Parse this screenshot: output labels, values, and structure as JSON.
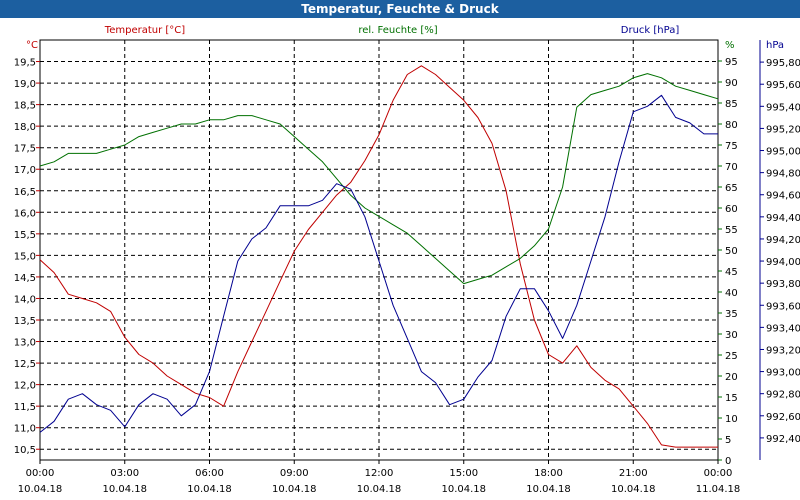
{
  "title": "Temperatur, Feuchte & Druck",
  "colors": {
    "titlebar": "#1c5fa0",
    "temperature": "#c00000",
    "humidity": "#007000",
    "pressure": "#000090",
    "grid": "#000000"
  },
  "chart_data": {
    "type": "line",
    "title": "Temperatur, Feuchte & Druck",
    "grid": true,
    "x_ticks": [
      {
        "time": "00:00",
        "date": "10.04.18"
      },
      {
        "time": "03:00",
        "date": "10.04.18"
      },
      {
        "time": "06:00",
        "date": "10.04.18"
      },
      {
        "time": "09:00",
        "date": "10.04.18"
      },
      {
        "time": "12:00",
        "date": "10.04.18"
      },
      {
        "time": "15:00",
        "date": "10.04.18"
      },
      {
        "time": "18:00",
        "date": "10.04.18"
      },
      {
        "time": "21:00",
        "date": "10.04.18"
      },
      {
        "time": "00:00",
        "date": "11.04.18"
      }
    ],
    "axes": {
      "temperature": {
        "unit": "°C",
        "ylim": [
          10.25,
          20.0
        ],
        "ticks": [
          "19,5",
          "19,0",
          "18,5",
          "18,0",
          "17,5",
          "17,0",
          "16,5",
          "16,0",
          "15,5",
          "15,0",
          "14,5",
          "14,0",
          "13,5",
          "13,0",
          "12,5",
          "12,0",
          "11,5",
          "11,0",
          "10,5"
        ]
      },
      "humidity": {
        "unit": "%",
        "ylim": [
          0,
          100
        ],
        "ticks": [
          "95",
          "90",
          "85",
          "80",
          "75",
          "70",
          "65",
          "60",
          "55",
          "50",
          "45",
          "40",
          "35",
          "30",
          "25",
          "20",
          "15",
          "10",
          "5",
          "0"
        ]
      },
      "pressure": {
        "unit": "hPa",
        "ylim": [
          992.2,
          996.0
        ],
        "ticks": [
          "995,80",
          "995,60",
          "995,40",
          "995,20",
          "995,00",
          "994,80",
          "994,60",
          "994,40",
          "994,20",
          "994,00",
          "993,80",
          "993,60",
          "993,40",
          "993,20",
          "993,00",
          "992,80",
          "992,60",
          "992,40"
        ]
      }
    },
    "series": [
      {
        "name": "Temperatur [°C]",
        "color": "#c00000",
        "axis": "temperature",
        "x": [
          0,
          0.5,
          1,
          1.5,
          2,
          2.5,
          3,
          3.5,
          4,
          4.5,
          5,
          5.5,
          6,
          6.5,
          7,
          7.5,
          8,
          8.5,
          9,
          9.5,
          10,
          10.5,
          11,
          11.5,
          12,
          12.5,
          13,
          13.5,
          14,
          14.5,
          15,
          15.5,
          16,
          16.5,
          17,
          17.5,
          18,
          18.5,
          19,
          19.5,
          20,
          20.5,
          21,
          21.5,
          22,
          22.5,
          23,
          23.5,
          24
        ],
        "values": [
          14.9,
          14.6,
          14.1,
          14.0,
          13.9,
          13.7,
          13.1,
          12.7,
          12.5,
          12.2,
          12.0,
          11.8,
          11.7,
          11.5,
          12.3,
          13.0,
          13.7,
          14.4,
          15.1,
          15.6,
          16.0,
          16.4,
          16.7,
          17.2,
          17.8,
          18.6,
          19.2,
          19.4,
          19.2,
          18.9,
          18.6,
          18.2,
          17.6,
          16.5,
          14.8,
          13.5,
          12.7,
          12.5,
          12.9,
          12.4,
          12.1,
          11.9,
          11.5,
          11.1,
          10.6,
          10.55,
          10.55,
          10.55,
          10.55
        ]
      },
      {
        "name": "rel. Feuchte [%]",
        "color": "#007000",
        "axis": "humidity",
        "x": [
          0,
          0.5,
          1,
          1.5,
          2,
          2.5,
          3,
          3.5,
          4,
          4.5,
          5,
          5.5,
          6,
          6.5,
          7,
          7.5,
          8,
          8.5,
          9,
          9.5,
          10,
          10.5,
          11,
          11.5,
          12,
          12.5,
          13,
          13.5,
          14,
          14.5,
          15,
          15.5,
          16,
          16.5,
          17,
          17.5,
          18,
          18.5,
          19,
          19.5,
          20,
          20.5,
          21,
          21.5,
          22,
          22.5,
          23,
          23.5,
          24
        ],
        "values": [
          70,
          71,
          73,
          73,
          73,
          74,
          75,
          77,
          78,
          79,
          80,
          80,
          81,
          81,
          82,
          82,
          81,
          80,
          77,
          74,
          71,
          67,
          63,
          60,
          58,
          56,
          54,
          51,
          48,
          45,
          42,
          43,
          44,
          46,
          48,
          51,
          55,
          65,
          84,
          87,
          88,
          89,
          91,
          92,
          91,
          89,
          88,
          87,
          86
        ]
      },
      {
        "name": "Druck [hPa]",
        "color": "#000090",
        "axis": "pressure",
        "x": [
          0,
          0.5,
          1,
          1.5,
          2,
          2.5,
          3,
          3.5,
          4,
          4.5,
          5,
          5.5,
          6,
          6.5,
          7,
          7.5,
          8,
          8.5,
          9,
          9.5,
          10,
          10.5,
          11,
          11.5,
          12,
          12.5,
          13,
          13.5,
          14,
          14.5,
          15,
          15.5,
          16,
          16.5,
          17,
          17.5,
          18,
          18.5,
          19,
          19.5,
          20,
          20.5,
          21,
          21.5,
          22,
          22.5,
          23,
          23.5,
          24
        ],
        "values": [
          992.45,
          992.55,
          992.75,
          992.8,
          992.7,
          992.65,
          992.5,
          992.7,
          992.8,
          992.75,
          992.6,
          992.7,
          993.0,
          993.5,
          994.0,
          994.2,
          994.3,
          994.5,
          994.5,
          994.5,
          994.55,
          994.7,
          994.65,
          994.4,
          994.0,
          993.6,
          993.3,
          993.0,
          992.9,
          992.7,
          992.75,
          992.95,
          993.1,
          993.5,
          993.75,
          993.75,
          993.55,
          993.3,
          993.6,
          994.0,
          994.4,
          994.9,
          995.35,
          995.4,
          995.5,
          995.3,
          995.25,
          995.15,
          995.15
        ]
      }
    ]
  }
}
